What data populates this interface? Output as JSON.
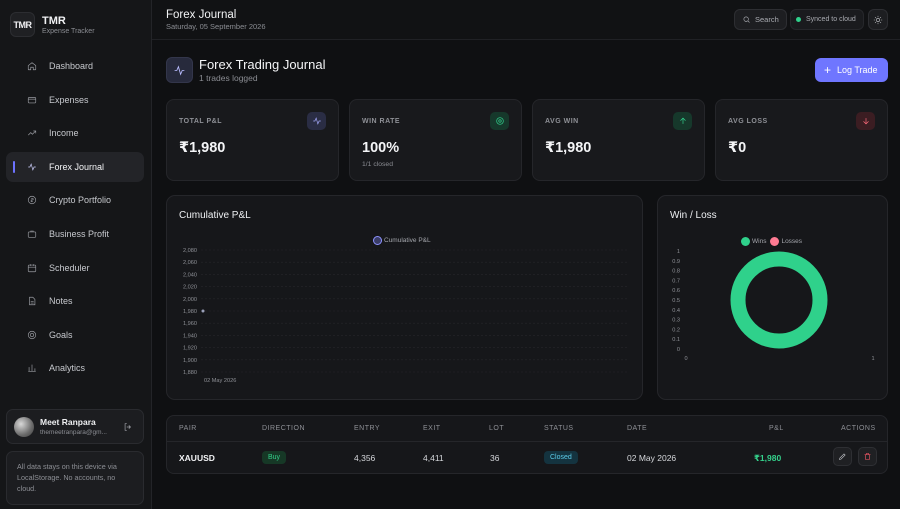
{
  "brand": {
    "logo_text": "TMR",
    "name": "TMR",
    "subtitle": "Expense Tracker"
  },
  "sidebar": {
    "items": [
      {
        "label": "Dashboard",
        "icon": "home-icon",
        "active": false
      },
      {
        "label": "Expenses",
        "icon": "wallet-icon",
        "active": false
      },
      {
        "label": "Income",
        "icon": "trending-up-icon",
        "active": false
      },
      {
        "label": "Forex Journal",
        "icon": "activity-icon",
        "active": true
      },
      {
        "label": "Crypto Portfolio",
        "icon": "coin-icon",
        "active": false
      },
      {
        "label": "Business Profit",
        "icon": "briefcase-icon",
        "active": false
      },
      {
        "label": "Scheduler",
        "icon": "calendar-icon",
        "active": false
      },
      {
        "label": "Notes",
        "icon": "file-icon",
        "active": false
      },
      {
        "label": "Goals",
        "icon": "target-icon",
        "active": false
      },
      {
        "label": "Analytics",
        "icon": "bar-chart-icon",
        "active": false
      }
    ]
  },
  "user": {
    "name": "Meet Ranpara",
    "email": "themeetranpara@gm..."
  },
  "storage_note": "All data stays on this device via LocalStorage. No accounts, no cloud.",
  "topbar": {
    "title": "Forex Journal",
    "date": "Saturday, 05 September 2026",
    "search_label": "Search",
    "sync_label": "Synced to cloud"
  },
  "header": {
    "title": "Forex Trading Journal",
    "subtitle": "1 trades logged",
    "log_trade_label": "Log Trade"
  },
  "stats": [
    {
      "label": "TOTAL P&L",
      "value": "₹1,980",
      "sub": "",
      "icon": "activity-icon",
      "tone": "blue"
    },
    {
      "label": "WIN RATE",
      "value": "100%",
      "sub": "1/1 closed",
      "icon": "target-icon",
      "tone": "green"
    },
    {
      "label": "AVG WIN",
      "value": "₹1,980",
      "sub": "",
      "icon": "arrow-up-icon",
      "tone": "green"
    },
    {
      "label": "AVG LOSS",
      "value": "₹0",
      "sub": "",
      "icon": "arrow-down-icon",
      "tone": "red"
    }
  ],
  "colors": {
    "accent": "#6f76ff",
    "win": "#2fd18b",
    "loss": "#ff7b93",
    "background": "#0f1012"
  },
  "chart_data": [
    {
      "type": "line",
      "title": "Cumulative P&L",
      "legend": [
        "Cumulative P&L"
      ],
      "legend_position": "top-center",
      "x": [
        "02 May 2026"
      ],
      "series": [
        {
          "name": "Cumulative P&L",
          "values": [
            1980
          ]
        }
      ],
      "yticks": [
        "2,080",
        "2,060",
        "2,040",
        "2,020",
        "2,000",
        "1,980",
        "1,960",
        "1,940",
        "1,920",
        "1,900",
        "1,880"
      ],
      "ylim": [
        1880,
        2080
      ],
      "grid": true
    },
    {
      "type": "pie",
      "title": "Win / Loss",
      "legend": [
        "Wins",
        "Losses"
      ],
      "legend_position": "top-center",
      "labels": [
        "Wins",
        "Losses"
      ],
      "values": [
        1,
        0
      ],
      "donut": true,
      "yticks": [
        "1",
        "0.9",
        "0.8",
        "0.7",
        "0.6",
        "0.5",
        "0.4",
        "0.3",
        "0.2",
        "0.1",
        "0"
      ],
      "xticks": [
        "0",
        "1"
      ]
    }
  ],
  "table": {
    "headers": [
      "PAIR",
      "DIRECTION",
      "ENTRY",
      "EXIT",
      "LOT",
      "STATUS",
      "DATE",
      "P&L",
      "ACTIONS"
    ],
    "rows": [
      {
        "pair": "XAUUSD",
        "direction": "Buy",
        "entry": "4,356",
        "exit": "4,411",
        "lot": "36",
        "status": "Closed",
        "date": "02 May 2026",
        "pnl": "₹1,980"
      }
    ]
  }
}
